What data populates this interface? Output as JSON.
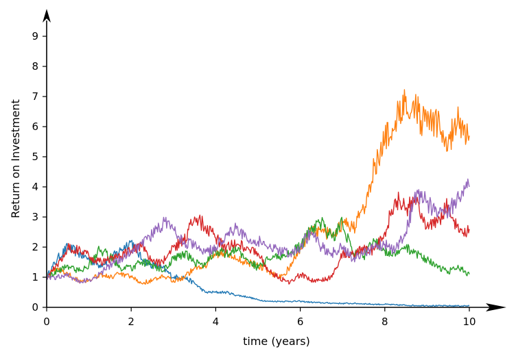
{
  "chart_data": {
    "type": "line",
    "xlabel": "time (years)",
    "ylabel": "Return on Investment",
    "xlim": [
      0,
      11.2
    ],
    "ylim": [
      0,
      9.9
    ],
    "xticks": [
      0,
      2,
      4,
      6,
      8,
      10
    ],
    "yticks": [
      0,
      1,
      2,
      3,
      4,
      5,
      6,
      7,
      8,
      9
    ],
    "grid": false,
    "axis_arrows": true,
    "series": [
      {
        "color": "#1f77b4",
        "x": [
          0,
          0.25,
          0.5,
          0.75,
          1.0,
          1.25,
          1.5,
          1.75,
          2.0,
          2.25,
          2.5,
          2.75,
          3.0,
          3.25,
          3.5,
          3.75,
          4.0,
          4.25,
          4.5,
          4.75,
          5.0,
          5.25,
          5.5,
          5.75,
          6.0,
          6.25,
          6.5,
          6.75,
          7.0,
          7.25,
          7.5,
          7.75,
          8.0,
          8.25,
          8.5,
          8.75,
          9.0,
          9.25,
          9.5,
          9.75,
          10.0
        ],
        "values": [
          1.0,
          1.6,
          2.0,
          1.8,
          1.6,
          1.4,
          1.6,
          1.9,
          2.2,
          1.6,
          1.4,
          1.3,
          1.0,
          1.0,
          0.8,
          0.5,
          0.5,
          0.5,
          0.4,
          0.35,
          0.25,
          0.2,
          0.2,
          0.2,
          0.2,
          0.17,
          0.15,
          0.14,
          0.13,
          0.13,
          0.12,
          0.1,
          0.1,
          0.08,
          0.07,
          0.06,
          0.06,
          0.05,
          0.05,
          0.05,
          0.05
        ]
      },
      {
        "color": "#ff7f0e",
        "x": [
          0,
          0.25,
          0.5,
          0.75,
          1.0,
          1.25,
          1.5,
          1.75,
          2.0,
          2.25,
          2.5,
          2.75,
          3.0,
          3.25,
          3.5,
          3.75,
          4.0,
          4.25,
          4.5,
          4.75,
          5.0,
          5.25,
          5.5,
          5.75,
          6.0,
          6.25,
          6.5,
          6.75,
          7.0,
          7.25,
          7.5,
          7.75,
          8.0,
          8.25,
          8.5,
          8.75,
          9.0,
          9.25,
          9.5,
          9.75,
          10.0
        ],
        "values": [
          1.0,
          1.3,
          1.1,
          0.9,
          0.9,
          1.1,
          1.0,
          1.1,
          1.0,
          0.8,
          0.9,
          1.0,
          0.9,
          1.0,
          1.3,
          1.4,
          1.8,
          1.8,
          1.6,
          1.5,
          1.4,
          1.2,
          1.0,
          1.3,
          2.0,
          2.5,
          2.5,
          2.4,
          2.8,
          2.6,
          3.3,
          4.7,
          5.5,
          6.2,
          7.0,
          6.5,
          6.0,
          6.1,
          5.5,
          6.2,
          5.7
        ]
      },
      {
        "color": "#2ca02c",
        "x": [
          0,
          0.25,
          0.5,
          0.75,
          1.0,
          1.25,
          1.5,
          1.75,
          2.0,
          2.25,
          2.5,
          2.75,
          3.0,
          3.25,
          3.5,
          3.75,
          4.0,
          4.25,
          4.5,
          4.75,
          5.0,
          5.25,
          5.5,
          5.75,
          6.0,
          6.25,
          6.5,
          6.75,
          7.0,
          7.25,
          7.5,
          7.75,
          8.0,
          8.25,
          8.5,
          8.75,
          9.0,
          9.25,
          9.5,
          9.75,
          10.0
        ],
        "values": [
          1.0,
          1.2,
          1.4,
          1.2,
          1.4,
          1.9,
          1.7,
          1.3,
          1.3,
          1.5,
          1.4,
          1.2,
          1.6,
          1.8,
          1.5,
          1.4,
          1.9,
          1.8,
          1.9,
          1.6,
          1.3,
          1.6,
          1.7,
          1.8,
          2.0,
          2.6,
          2.8,
          2.3,
          2.8,
          1.8,
          1.7,
          2.2,
          1.9,
          1.7,
          2.0,
          1.8,
          1.6,
          1.3,
          1.2,
          1.3,
          1.1
        ]
      },
      {
        "color": "#d62728",
        "x": [
          0,
          0.25,
          0.5,
          0.75,
          1.0,
          1.25,
          1.5,
          1.75,
          2.0,
          2.25,
          2.5,
          2.75,
          3.0,
          3.25,
          3.5,
          3.75,
          4.0,
          4.25,
          4.5,
          4.75,
          5.0,
          5.25,
          5.5,
          5.75,
          6.0,
          6.25,
          6.5,
          6.75,
          7.0,
          7.25,
          7.5,
          7.75,
          8.0,
          8.25,
          8.5,
          8.75,
          9.0,
          9.25,
          9.5,
          9.75,
          10.0
        ],
        "values": [
          1.0,
          1.4,
          2.0,
          1.9,
          1.7,
          1.5,
          1.6,
          1.7,
          1.9,
          2.0,
          1.5,
          1.5,
          2.0,
          2.2,
          3.0,
          2.7,
          2.3,
          2.0,
          2.1,
          2.0,
          1.8,
          1.2,
          1.0,
          0.8,
          1.1,
          0.9,
          0.9,
          1.0,
          1.8,
          1.8,
          1.9,
          1.9,
          2.5,
          3.6,
          3.3,
          3.5,
          2.7,
          2.8,
          3.4,
          2.5,
          2.6
        ]
      },
      {
        "color": "#9467bd",
        "x": [
          0,
          0.25,
          0.5,
          0.75,
          1.0,
          1.25,
          1.5,
          1.75,
          2.0,
          2.25,
          2.5,
          2.75,
          3.0,
          3.25,
          3.5,
          3.75,
          4.0,
          4.25,
          4.5,
          4.75,
          5.0,
          5.25,
          5.5,
          5.75,
          6.0,
          6.25,
          6.5,
          6.75,
          7.0,
          7.25,
          7.5,
          7.75,
          8.0,
          8.25,
          8.5,
          8.75,
          9.0,
          9.25,
          9.5,
          9.75,
          10.0
        ],
        "values": [
          1.0,
          1.0,
          1.1,
          0.85,
          0.9,
          1.1,
          1.4,
          1.6,
          1.9,
          2.1,
          2.4,
          2.8,
          2.6,
          2.1,
          2.1,
          1.8,
          2.0,
          2.4,
          2.7,
          2.2,
          2.2,
          2.0,
          1.9,
          1.8,
          2.0,
          2.5,
          2.0,
          1.8,
          2.0,
          1.6,
          1.8,
          2.0,
          2.1,
          1.9,
          2.5,
          3.8,
          3.5,
          3.0,
          3.2,
          3.6,
          4.0
        ]
      }
    ]
  }
}
